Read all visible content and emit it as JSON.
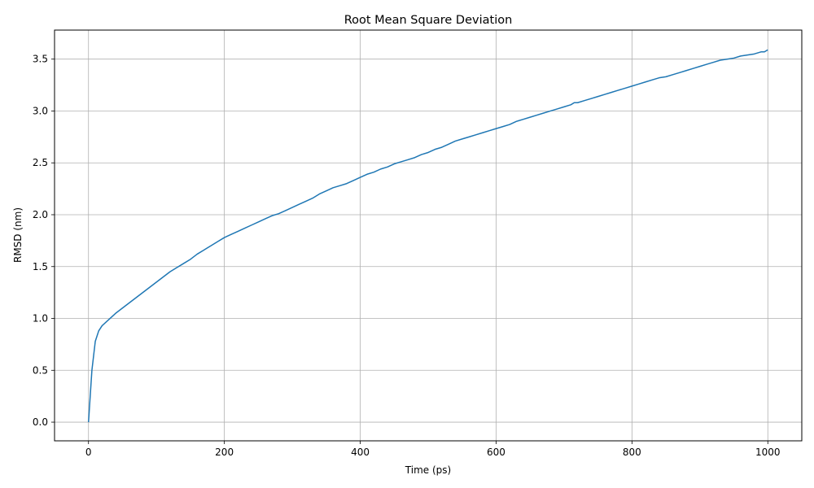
{
  "chart_data": {
    "type": "line",
    "title": "Root Mean Square Deviation",
    "xlabel": "Time (ps)",
    "ylabel": "RMSD (nm)",
    "xlim": [
      -50,
      1050
    ],
    "ylim": [
      -0.18,
      3.78
    ],
    "xticks": [
      0,
      200,
      400,
      600,
      800,
      1000
    ],
    "xtick_labels": [
      "0",
      "200",
      "400",
      "600",
      "800",
      "1000"
    ],
    "yticks": [
      0.0,
      0.5,
      1.0,
      1.5,
      2.0,
      2.5,
      3.0,
      3.5
    ],
    "ytick_labels": [
      "0.0",
      "0.5",
      "1.0",
      "1.5",
      "2.0",
      "2.5",
      "3.0",
      "3.5"
    ],
    "grid": true,
    "line_color": "#1f77b4",
    "series": [
      {
        "x": [
          0,
          5,
          10,
          15,
          20,
          30,
          40,
          50,
          60,
          70,
          80,
          90,
          100,
          110,
          120,
          130,
          140,
          150,
          160,
          170,
          180,
          190,
          200,
          210,
          220,
          230,
          240,
          250,
          260,
          270,
          280,
          290,
          300,
          310,
          320,
          330,
          340,
          350,
          360,
          370,
          380,
          390,
          400,
          410,
          420,
          430,
          440,
          450,
          460,
          470,
          480,
          490,
          500,
          510,
          520,
          530,
          540,
          550,
          560,
          570,
          580,
          590,
          600,
          610,
          620,
          630,
          640,
          650,
          660,
          670,
          680,
          690,
          700,
          710,
          715,
          720,
          730,
          740,
          750,
          760,
          770,
          780,
          790,
          800,
          810,
          820,
          830,
          840,
          850,
          860,
          870,
          880,
          890,
          900,
          910,
          920,
          930,
          940,
          950,
          960,
          970,
          980,
          990,
          995,
          1000
        ],
        "y": [
          0.0,
          0.5,
          0.78,
          0.88,
          0.93,
          0.99,
          1.05,
          1.1,
          1.15,
          1.2,
          1.25,
          1.3,
          1.35,
          1.4,
          1.45,
          1.49,
          1.53,
          1.57,
          1.62,
          1.66,
          1.7,
          1.74,
          1.78,
          1.81,
          1.84,
          1.87,
          1.9,
          1.93,
          1.96,
          1.99,
          2.01,
          2.04,
          2.07,
          2.1,
          2.13,
          2.16,
          2.2,
          2.23,
          2.26,
          2.28,
          2.3,
          2.33,
          2.36,
          2.39,
          2.41,
          2.44,
          2.46,
          2.49,
          2.51,
          2.53,
          2.55,
          2.58,
          2.6,
          2.63,
          2.65,
          2.68,
          2.71,
          2.73,
          2.75,
          2.77,
          2.79,
          2.81,
          2.83,
          2.85,
          2.87,
          2.9,
          2.92,
          2.94,
          2.96,
          2.98,
          3.0,
          3.02,
          3.04,
          3.06,
          3.08,
          3.08,
          3.1,
          3.12,
          3.14,
          3.16,
          3.18,
          3.2,
          3.22,
          3.24,
          3.26,
          3.28,
          3.3,
          3.32,
          3.33,
          3.35,
          3.37,
          3.39,
          3.41,
          3.43,
          3.45,
          3.47,
          3.49,
          3.5,
          3.51,
          3.53,
          3.54,
          3.55,
          3.57,
          3.57,
          3.59
        ]
      }
    ]
  }
}
